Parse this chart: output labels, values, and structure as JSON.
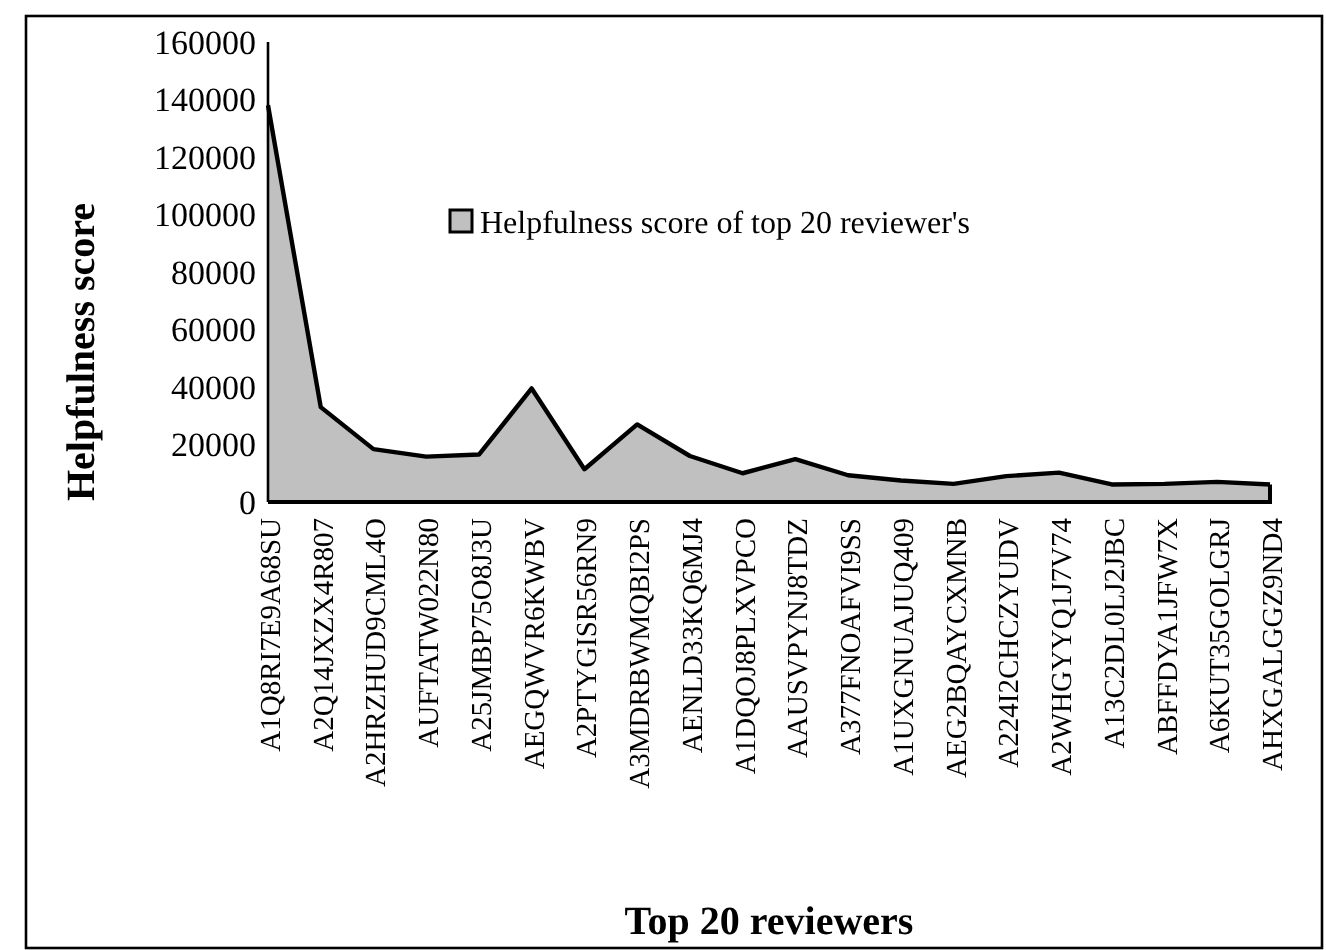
{
  "chart_data": {
    "type": "area",
    "xlabel": "Top 20 reviewers",
    "ylabel": "Helpfulness score",
    "categories": [
      "A1Q8RI7E9A68SU",
      "A2Q14JXZX4R807",
      "A2HRZHUD9CML4O",
      "AUFTATW022N80",
      "A25JMBP75O8J3U",
      "AEGQWVR6KWBV",
      "A2PTYGISR56RN9",
      "A3MDRBWMQBI2PS",
      "AENLD33KQ6MJ4",
      "A1DQOJ8PLXVPCO",
      "AAUSVPYNJ8TDZ",
      "A377FNOAFVI9SS",
      "A1UXGNUAJUQ409",
      "AEG2BQAYCXMNB",
      "A224I2CHCZYUDV",
      "A2WHGYYQ1J7V74",
      "A13C2DL0LJ2JBC",
      "ABFFDYA1JFW7X",
      "A6KUT35GOLGRJ",
      "AHXGALGGZ9ND4"
    ],
    "series": [
      {
        "name": "Helpfulness score of top 20 reviewer's",
        "color": "#c0c0c0",
        "values": [
          138000,
          33000,
          18400,
          15800,
          16500,
          39500,
          11400,
          27000,
          16000,
          10000,
          14900,
          9300,
          7500,
          6300,
          9000,
          10200,
          6100,
          6300,
          7000,
          6100
        ]
      }
    ],
    "ylim": [
      0,
      160000
    ],
    "yticks": [
      0,
      20000,
      40000,
      60000,
      80000,
      100000,
      120000,
      140000,
      160000
    ],
    "grid": false,
    "legend": "top"
  }
}
